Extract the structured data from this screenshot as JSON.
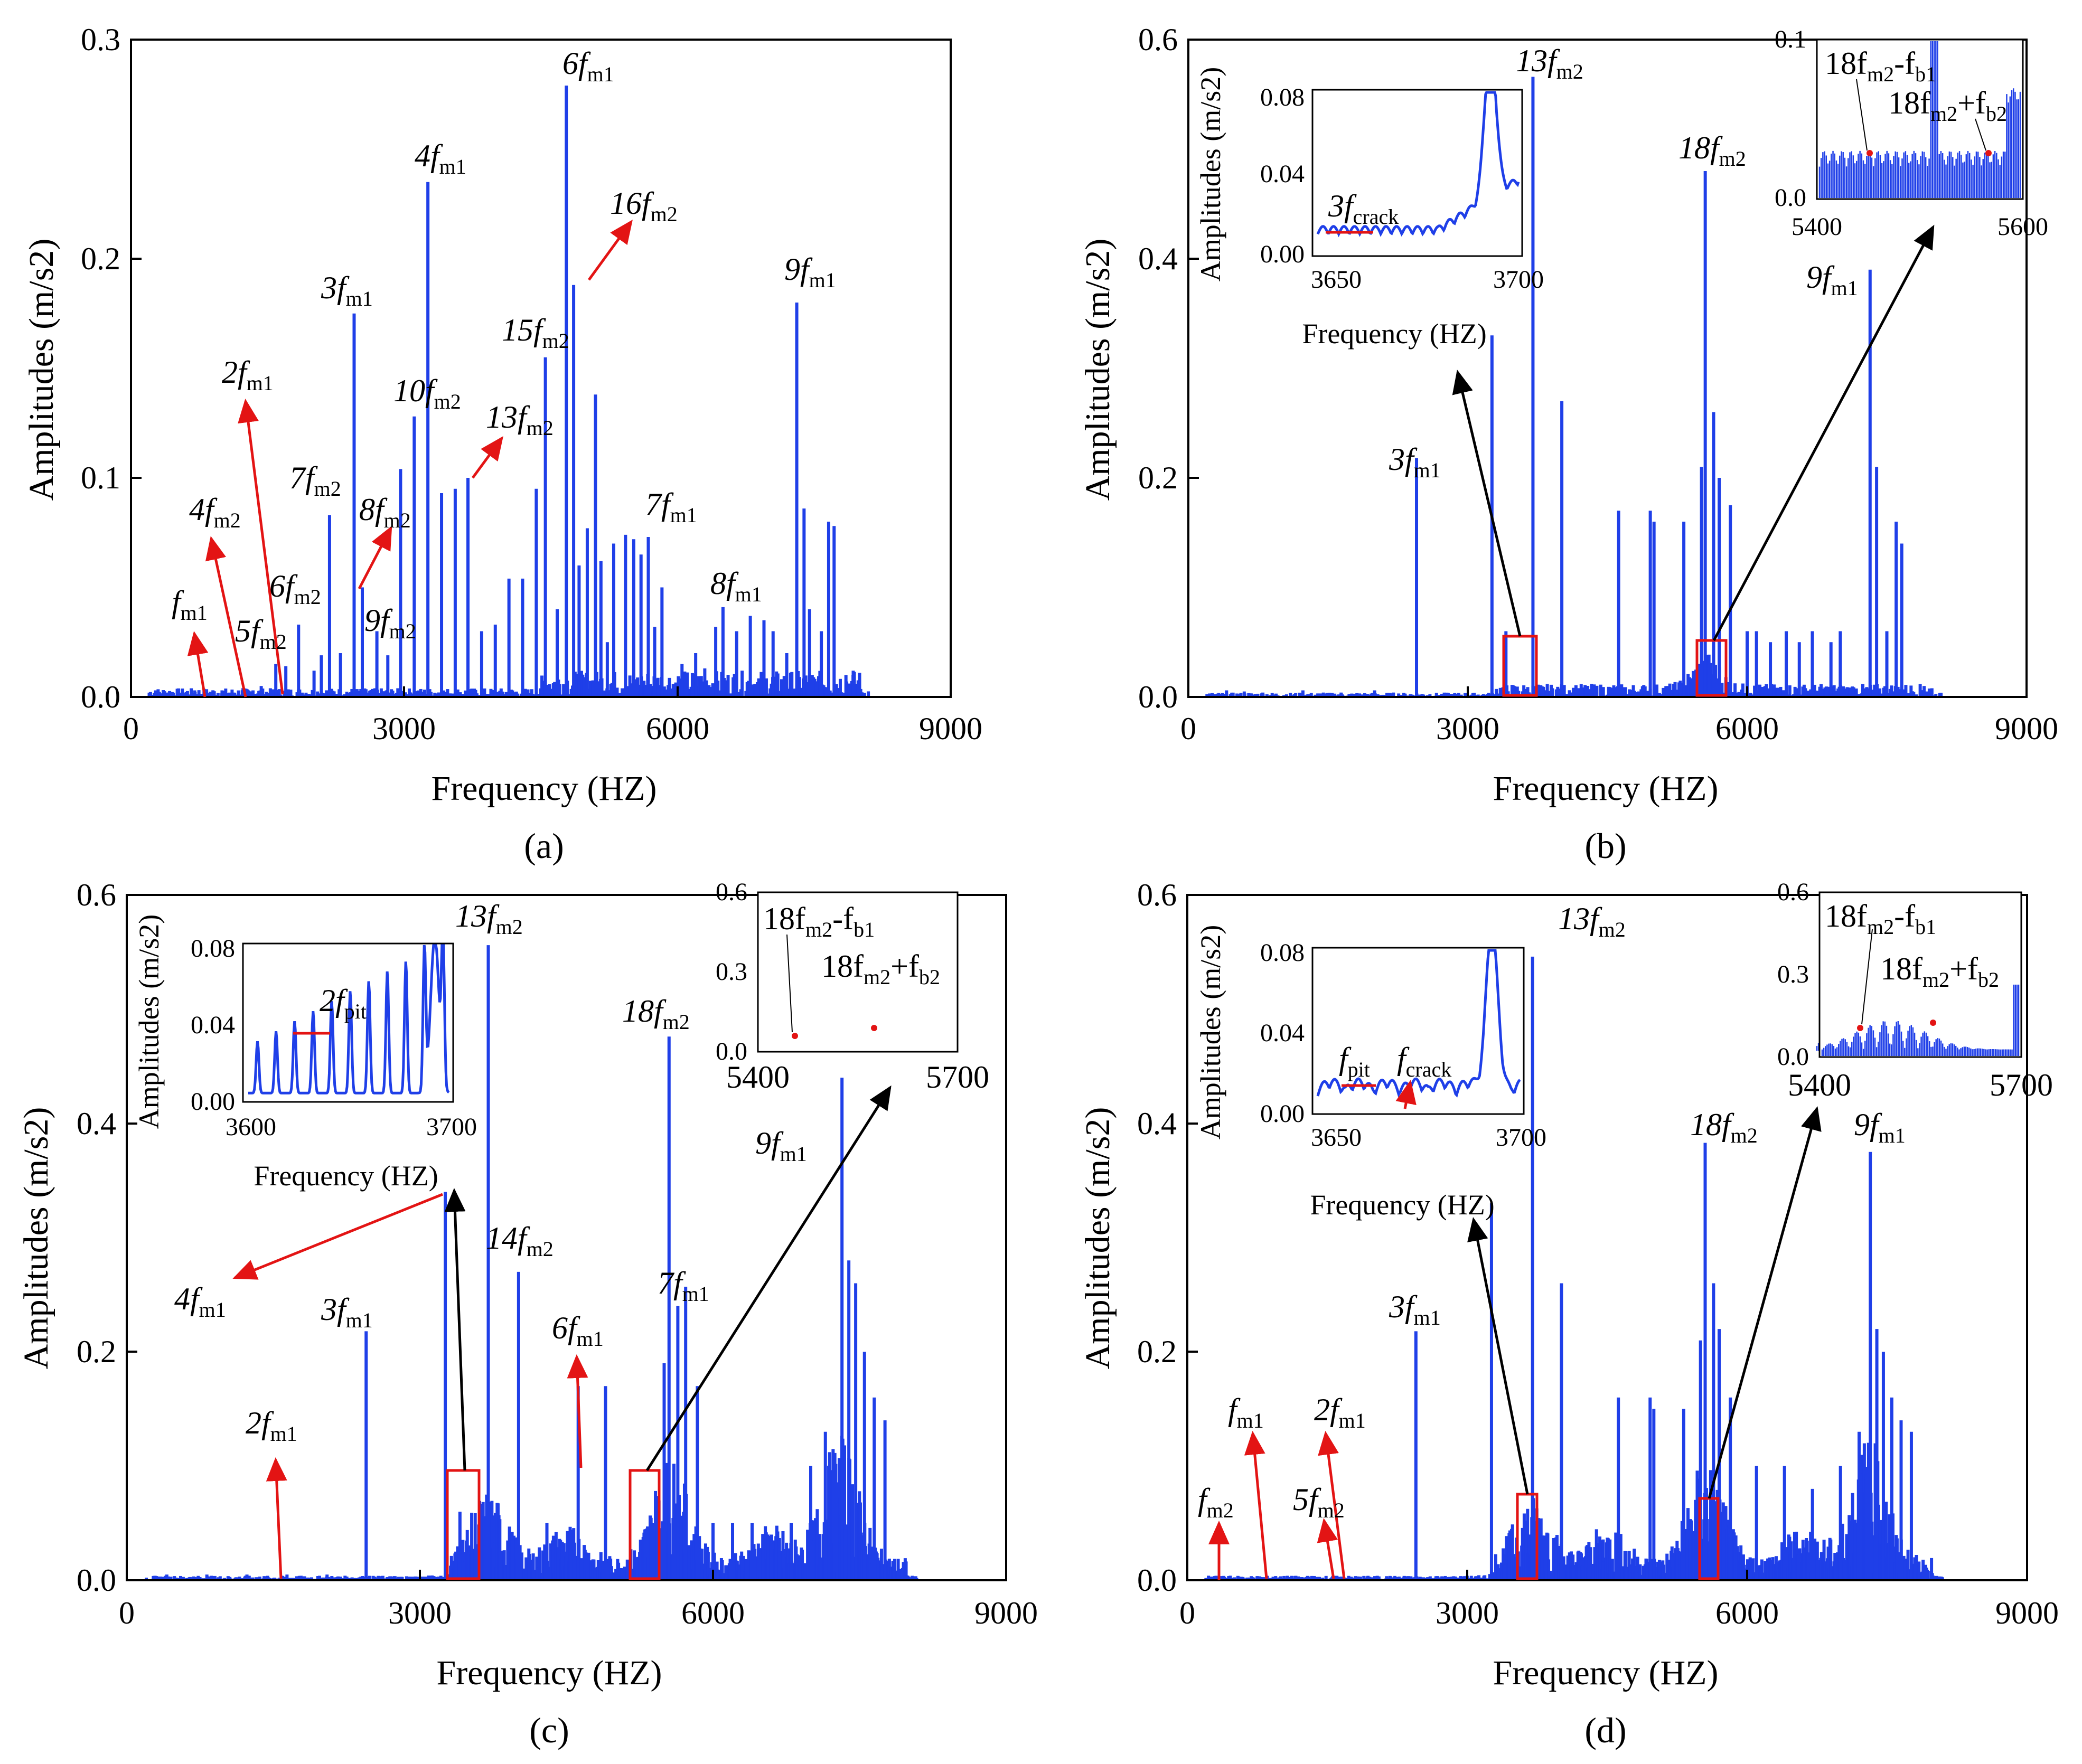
{
  "colors": {
    "series": "#1f3fe8",
    "annotation": "#e31414",
    "axis": "#000000"
  },
  "chart_data": [
    {
      "id": "a",
      "type": "bar",
      "panel_label": "(a)",
      "xlabel": "Frequency (HZ)",
      "ylabel": "Amplitudes (m/s2)",
      "xlim": [
        0,
        9000
      ],
      "ylim": [
        0,
        0.3
      ],
      "xticks": [
        "0",
        "3000",
        "6000",
        "9000"
      ],
      "yticks": [
        "0.0",
        "0.1",
        "0.2",
        "0.3"
      ],
      "series": [
        {
          "name": "spectrum",
          "x": [
            270,
            410,
            560,
            700,
            820,
            1000,
            1130,
            1230,
            1340,
            1430,
            1590,
            1700,
            1840,
            2010,
            2090,
            2180,
            2300,
            2450,
            2540,
            2700,
            2820,
            2960,
            3110,
            3260,
            3410,
            3560,
            3700,
            3850,
            4000,
            4150,
            4300,
            4450,
            4550,
            4680,
            4780,
            4860,
            4920,
            5010,
            5100,
            5160,
            5230,
            5300,
            5430,
            5520,
            5600,
            5680,
            5750,
            5830,
            6050,
            6200,
            6300,
            6420,
            6500,
            6650,
            6800,
            6950,
            7050,
            7200,
            7310,
            7390,
            7450,
            7580,
            7660,
            7720,
            7850,
            7930,
            8000
          ],
          "values": [
            0.003,
            0.002,
            0.002,
            0.003,
            0.002,
            0.003,
            0.002,
            0.004,
            0.003,
            0.005,
            0.015,
            0.014,
            0.033,
            0.012,
            0.019,
            0.083,
            0.02,
            0.175,
            0.05,
            0.03,
            0.019,
            0.104,
            0.128,
            0.235,
            0.093,
            0.095,
            0.1,
            0.03,
            0.033,
            0.054,
            0.054,
            0.095,
            0.155,
            0.04,
            0.279,
            0.188,
            0.06,
            0.077,
            0.138,
            0.062,
            0.025,
            0.07,
            0.074,
            0.072,
            0.065,
            0.073,
            0.032,
            0.05,
            0.015,
            0.02,
            0.013,
            0.032,
            0.041,
            0.03,
            0.037,
            0.035,
            0.03,
            0.02,
            0.18,
            0.086,
            0.04,
            0.03,
            0.08,
            0.078,
            0.01,
            0.012,
            0.011
          ]
        }
      ],
      "annotations": [
        {
          "main": "f",
          "sub": "m1"
        },
        {
          "main": "4f",
          "sub": "m2"
        },
        {
          "main": "2f",
          "sub": "m1"
        },
        {
          "main": "5f",
          "sub": "m2"
        },
        {
          "main": "6f",
          "sub": "m2"
        },
        {
          "main": "7f",
          "sub": "m2"
        },
        {
          "main": "3f",
          "sub": "m1"
        },
        {
          "main": "8f",
          "sub": "m2"
        },
        {
          "main": "9f",
          "sub": "m2"
        },
        {
          "main": "10f",
          "sub": "m2"
        },
        {
          "main": "4f",
          "sub": "m1"
        },
        {
          "main": "13f",
          "sub": "m2"
        },
        {
          "main": "15f",
          "sub": "m2"
        },
        {
          "main": "6f",
          "sub": "m1"
        },
        {
          "main": "16f",
          "sub": "m2"
        },
        {
          "main": "7f",
          "sub": "m1"
        },
        {
          "main": "8f",
          "sub": "m1"
        },
        {
          "main": "9f",
          "sub": "m1"
        }
      ]
    },
    {
      "id": "b",
      "type": "bar",
      "panel_label": "(b)",
      "xlabel": "Frequency (HZ)",
      "ylabel": "Amplitudes (m/s2)",
      "xlim": [
        0,
        9000
      ],
      "ylim": [
        0,
        0.6
      ],
      "xticks": [
        "0",
        "3000",
        "6000",
        "9000"
      ],
      "yticks": [
        "0.0",
        "0.2",
        "0.4",
        "0.6"
      ],
      "series": [
        {
          "name": "spectrum",
          "x": [
            410,
            600,
            800,
            1230,
            1450,
            1640,
            2000,
            2200,
            2450,
            3260,
            3410,
            3700,
            4010,
            4620,
            4960,
            5000,
            5320,
            5510,
            5550,
            5640,
            5700,
            5820,
            6000,
            6100,
            6250,
            6420,
            6560,
            6700,
            6900,
            7000,
            7320,
            7390,
            7500,
            7600,
            7660,
            7900
          ],
          "values": [
            0.006,
            0.005,
            0.004,
            0.006,
            0.004,
            0.004,
            0.006,
            0.004,
            0.218,
            0.33,
            0.06,
            0.566,
            0.27,
            0.17,
            0.17,
            0.16,
            0.16,
            0.21,
            0.48,
            0.26,
            0.2,
            0.175,
            0.06,
            0.06,
            0.05,
            0.06,
            0.05,
            0.06,
            0.05,
            0.06,
            0.39,
            0.21,
            0.06,
            0.16,
            0.14,
            0.01
          ]
        }
      ],
      "annotations": [
        {
          "main": "3f",
          "sub": "m1"
        },
        {
          "main": "13f",
          "sub": "m2"
        },
        {
          "main": "18f",
          "sub": "m2"
        },
        {
          "main": "9f",
          "sub": "m1"
        }
      ],
      "insets": [
        {
          "xlabel": "Frequency (HZ)",
          "ylabel": "Amplitudes (m/s2)",
          "xticks": [
            "3650",
            "3700"
          ],
          "yticks": [
            "0.00",
            "0.04",
            "0.08"
          ],
          "annotation": {
            "main": "3f",
            "sub": "crack"
          }
        },
        {
          "xticks": [
            "5400",
            "5600"
          ],
          "yticks": [
            "0.0",
            "0.1"
          ],
          "annotations": [
            {
              "main": "18f",
              "sub": "m2",
              "rest": "-f",
              "sub2": "b1"
            },
            {
              "main": "18f",
              "sub": "m2",
              "rest": "+f",
              "sub2": "b2"
            }
          ]
        }
      ]
    },
    {
      "id": "c",
      "type": "bar",
      "panel_label": "(c)",
      "xlabel": "Frequency (HZ)",
      "ylabel": "Amplitudes (m/s2)",
      "xlim": [
        0,
        9000
      ],
      "ylim": [
        0,
        0.6
      ],
      "xticks": [
        "0",
        "3000",
        "6000",
        "9000"
      ],
      "yticks": [
        "0.0",
        "0.2",
        "0.4",
        "0.6"
      ],
      "series": [
        {
          "name": "spectrum",
          "x": [
            410,
            820,
            1230,
            1640,
            2050,
            2450,
            3260,
            3410,
            3700,
            4010,
            4300,
            4620,
            4900,
            5380,
            5500,
            5550,
            5640,
            5720,
            5840,
            6000,
            6200,
            6400,
            6600,
            6800,
            7000,
            7150,
            7320,
            7390,
            7460,
            7550,
            7650,
            7760
          ],
          "values": [
            0.005,
            0.005,
            0.005,
            0.005,
            0.005,
            0.218,
            0.34,
            0.06,
            0.556,
            0.27,
            0.05,
            0.17,
            0.17,
            0.05,
            0.19,
            0.476,
            0.24,
            0.257,
            0.17,
            0.05,
            0.05,
            0.05,
            0.04,
            0.05,
            0.1,
            0.13,
            0.44,
            0.28,
            0.26,
            0.2,
            0.16,
            0.14
          ]
        }
      ],
      "annotations": [
        {
          "main": "4f",
          "sub": "m1"
        },
        {
          "main": "3f",
          "sub": "m1"
        },
        {
          "main": "2f",
          "sub": "m1"
        },
        {
          "main": "13f",
          "sub": "m2"
        },
        {
          "main": "14f",
          "sub": "m2"
        },
        {
          "main": "6f",
          "sub": "m1"
        },
        {
          "main": "18f",
          "sub": "m2"
        },
        {
          "main": "7f",
          "sub": "m1"
        },
        {
          "main": "9f",
          "sub": "m1"
        }
      ],
      "insets": [
        {
          "xlabel": "Frequency (HZ)",
          "ylabel": "Amplitudes (m/s2)",
          "xticks": [
            "3600",
            "3700"
          ],
          "yticks": [
            "0.00",
            "0.04",
            "0.08"
          ],
          "annotation": {
            "main": "2f",
            "sub": "pit"
          }
        },
        {
          "xticks": [
            "5400",
            "5700"
          ],
          "yticks": [
            "0.0",
            "0.3",
            "0.6"
          ],
          "annotations": [
            {
              "main": "18f",
              "sub": "m2",
              "rest": "-f",
              "sub2": "b1"
            },
            {
              "main": "18f",
              "sub": "m2",
              "rest": "+f",
              "sub2": "b2"
            }
          ]
        }
      ]
    },
    {
      "id": "d",
      "type": "bar",
      "panel_label": "(d)",
      "xlabel": "Frequency (HZ)",
      "ylabel": "Amplitudes (m/s2)",
      "xlim": [
        0,
        9000
      ],
      "ylim": [
        0,
        0.6
      ],
      "xticks": [
        "0",
        "3000",
        "6000",
        "9000"
      ],
      "yticks": [
        "0.0",
        "0.2",
        "0.4",
        "0.6"
      ],
      "series": [
        {
          "name": "spectrum",
          "x": [
            2450,
            3260,
            3700,
            4010,
            4620,
            4960,
            5000,
            5320,
            5500,
            5550,
            5640,
            5700,
            5820,
            6100,
            6400,
            6700,
            7000,
            7200,
            7320,
            7390,
            7460,
            7550,
            7650,
            7760
          ],
          "values": [
            0.218,
            0.33,
            0.546,
            0.26,
            0.16,
            0.16,
            0.15,
            0.15,
            0.21,
            0.383,
            0.26,
            0.22,
            0.16,
            0.1,
            0.1,
            0.08,
            0.1,
            0.13,
            0.375,
            0.22,
            0.2,
            0.16,
            0.14,
            0.13
          ]
        }
      ],
      "annotations": [
        {
          "main": "f",
          "sub": "m2"
        },
        {
          "main": "f",
          "sub": "m1"
        },
        {
          "main": "2f",
          "sub": "m1"
        },
        {
          "main": "5f",
          "sub": "m2"
        },
        {
          "main": "3f",
          "sub": "m1"
        },
        {
          "main": "13f",
          "sub": "m2"
        },
        {
          "main": "18f",
          "sub": "m2"
        },
        {
          "main": "9f",
          "sub": "m1"
        }
      ],
      "insets": [
        {
          "xlabel": "Frequency (HZ)",
          "ylabel": "Amplitudes (m/s2)",
          "xticks": [
            "3650",
            "3700"
          ],
          "yticks": [
            "0.00",
            "0.04",
            "0.08"
          ],
          "annotations": [
            {
              "main": "f",
              "sub": "pit"
            },
            {
              "main": "f",
              "sub": "crack"
            }
          ]
        },
        {
          "xticks": [
            "5400",
            "5700"
          ],
          "yticks": [
            "0.0",
            "0.3",
            "0.6"
          ],
          "annotations": [
            {
              "main": "18f",
              "sub": "m2",
              "rest": "-f",
              "sub2": "b1"
            },
            {
              "main": "18f",
              "sub": "m2",
              "rest": "+f",
              "sub2": "b2"
            }
          ]
        }
      ]
    }
  ]
}
